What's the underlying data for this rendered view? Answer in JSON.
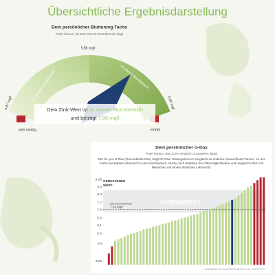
{
  "header": {
    "title": "Übersichtliche Ergebnisdarstellung"
  },
  "tacho": {
    "title": "Dein persönlicher Bluttuning-Tacho",
    "subtitle": "Finde heraus, ob Dein Wert im Normbereich liegt!",
    "top_label": "5,86 mg/l",
    "left_label": "4,87 mg/l",
    "right_label": "6,85 mg/l",
    "lower_zone": "im unteren Normbereich",
    "upper_zone": "im oberen Normbereich",
    "low_end": "sehr niedrig",
    "high_end": "erhöht",
    "result": {
      "prefix": "Dein Zink-Wert ist",
      "zone": "im oberen Normbereich",
      "middle": "und beträgt",
      "value": "7,90 mg/l"
    }
  },
  "gdax": {
    "title": "Dein persönlicher G-Dax",
    "subtitle": "Finde heraus, wie Du im Vergleich zu anderen liegst!",
    "description": "Der for you G-Dax (Gesundheits-Dax) zeigt Dir Dein Testergebnis im Vergleich zu anderen Gesundheits-Tunern. An der Farbe der Balken erkennst Du den Normbereich. Nutze nach Belieben die Filtermöglichkeiten und vergleiche Dich mit Menschen mit einem ähnlichen Lebensstil.",
    "footnote": "GESAMMELTE MESSERGEBNISSE AUS 1.000 TESTS",
    "chart_data": {
      "type": "bar",
      "y_label": "GEMESSENER WERT",
      "ylim": [
        3.3,
        9.6
      ],
      "yticks": [
        {
          "value": 9.35,
          "label": "9,35"
        },
        8.8,
        {
          "value": 8.3,
          "label": "8,3"
        },
        {
          "value": 7.7,
          "label": "7,7"
        },
        {
          "value": 7.2,
          "label": "7,2"
        },
        {
          "value": 6.6,
          "label": "6,6"
        },
        {
          "value": 6.1,
          "label": "6,1"
        },
        {
          "value": 5.5,
          "label": "5,5"
        },
        {
          "value": 4.8,
          "label": "4,8"
        },
        {
          "value": 3.55,
          "label": "3,55"
        }
      ],
      "values": [
        4.1,
        4.6,
        5.0,
        5.1,
        5.2,
        5.3,
        5.4,
        5.5,
        5.55,
        5.6,
        5.7,
        5.8,
        5.85,
        5.9,
        6.0,
        6.05,
        6.1,
        6.2,
        6.25,
        6.3,
        6.4,
        6.45,
        6.5,
        6.6,
        6.65,
        6.7,
        6.8,
        6.85,
        6.9,
        7.0,
        7.1,
        7.15,
        7.2,
        7.3,
        7.4,
        7.5,
        7.6,
        7.7,
        7.8,
        7.9,
        8.0,
        8.2,
        8.4,
        8.6,
        8.8,
        8.9,
        9.1,
        9.3,
        9.5,
        9.5
      ],
      "colors": [
        "#b5272d",
        "#b5272d",
        "#bcd892",
        "#bcd892",
        "#bcd892",
        "#bcd892",
        "#bcd892",
        "#bcd892",
        "#bcd892",
        "#bcd892",
        "#bcd892",
        "#bcd892",
        "#bcd892",
        "#bcd892",
        "#bcd892",
        "#bcd892",
        "#bcd892",
        "#bcd892",
        "#bcd892",
        "#bcd892",
        "#bcd892",
        "#bcd892",
        "#bcd892",
        "#bcd892",
        "#bcd892",
        "#bcd892",
        "#bcd892",
        "#bcd892",
        "#bcd892",
        "#bcd892",
        "#bcd892",
        "#bcd892",
        "#bcd892",
        "#bcd892",
        "#bcd892",
        "#bcd892",
        "#bcd892",
        "#bcd892",
        "#bcd892",
        "#1f3f73",
        "#bcd892",
        "#bcd892",
        "#bcd892",
        "#bcd892",
        "#bcd892",
        "#bcd892",
        "#b5272d",
        "#b5272d",
        "#b5272d",
        "#b5272d"
      ],
      "norm_band": {
        "label": "NORMWERT",
        "range": [
          7.0,
          8.6
        ]
      },
      "average": {
        "label": "Durchschnittswert",
        "value_label": "7,24 mg/l",
        "value": 7.24
      }
    }
  }
}
